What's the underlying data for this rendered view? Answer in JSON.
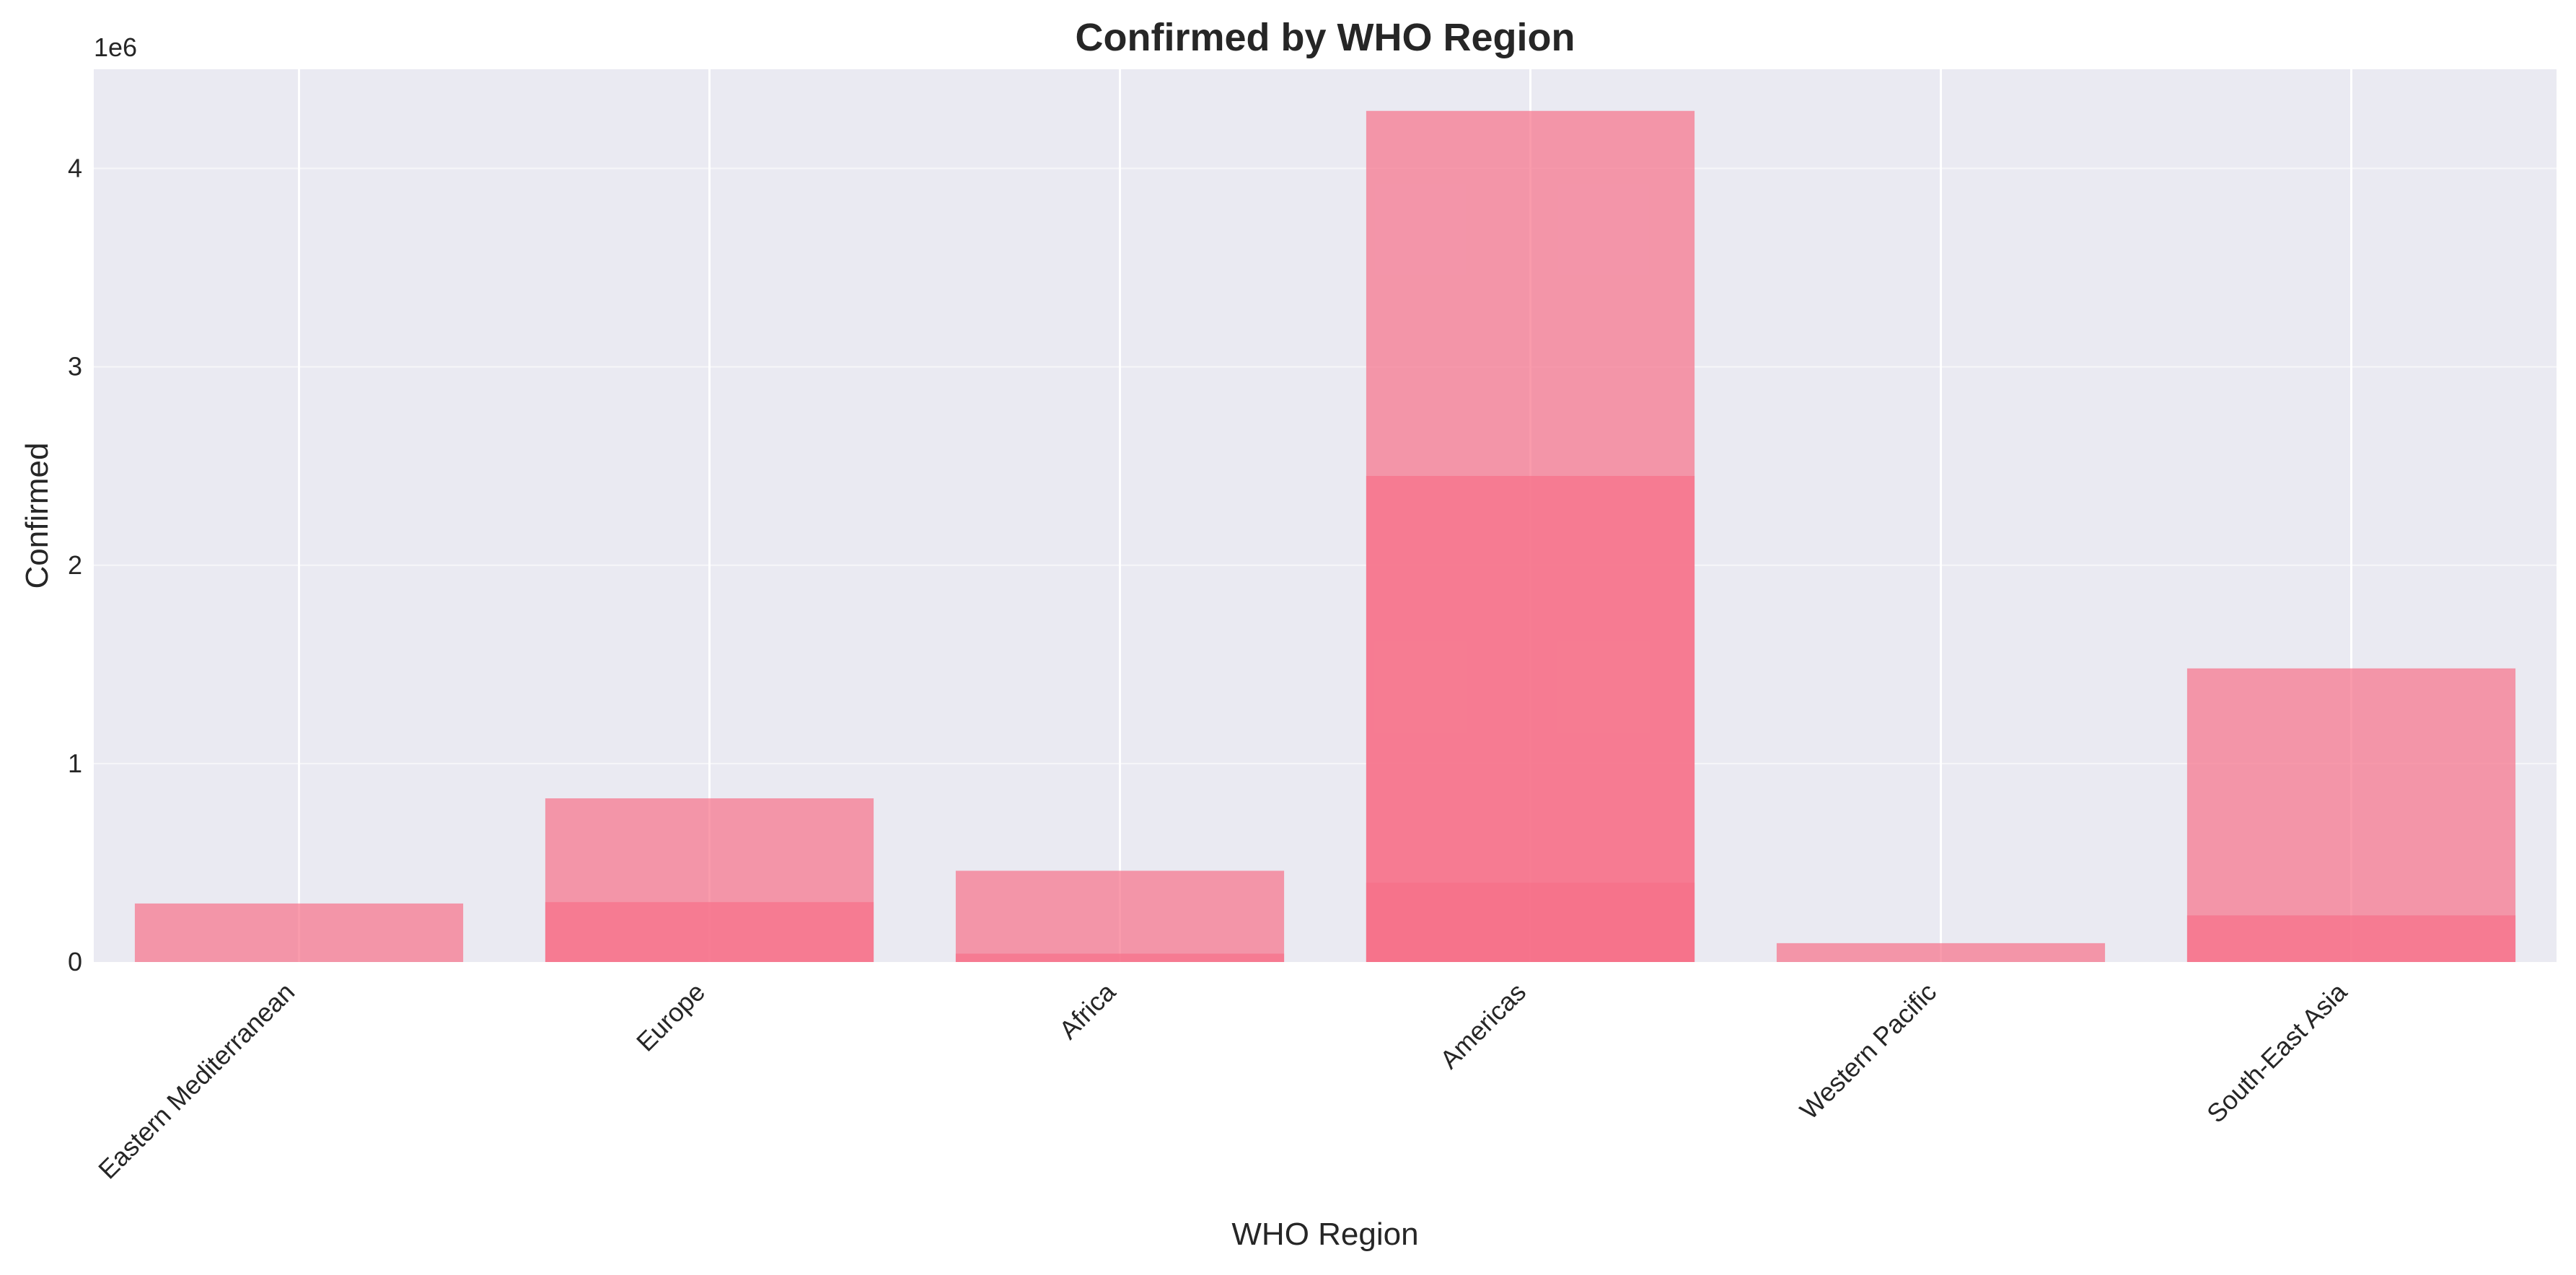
{
  "chart_data": {
    "type": "bar",
    "title": "Confirmed by WHO Region",
    "xlabel": "WHO Region",
    "ylabel": "Confirmed",
    "offset_label": "1e6",
    "ylim": [
      0,
      4500000
    ],
    "yticks": [
      0,
      1000000,
      2000000,
      3000000,
      4000000
    ],
    "ytick_labels": [
      "0",
      "1",
      "2",
      "3",
      "4"
    ],
    "categories": [
      "Eastern Mediterranean",
      "Europe",
      "Africa",
      "Americas",
      "Western Pacific",
      "South-East Asia"
    ],
    "layers": [
      [
        295000
      ],
      [
        825000,
        302000
      ],
      [
        460000,
        42000
      ],
      [
        4290000,
        2450000,
        400000
      ],
      [
        95000
      ],
      [
        1480000,
        235000
      ]
    ],
    "grid": true,
    "colors": {
      "background": "#eaeaf2",
      "grid": "#ffffff",
      "bar": "#f77189",
      "text": "#262626"
    }
  }
}
